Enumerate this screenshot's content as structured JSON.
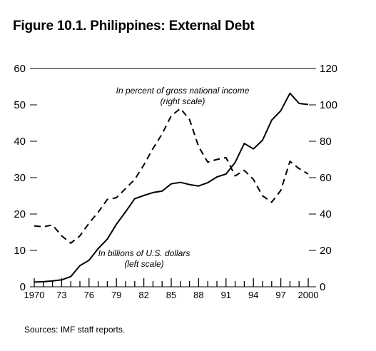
{
  "title": "Figure 10.1. Philippines: External Debt",
  "source": "Sources: IMF staff reports.",
  "chart_data": {
    "type": "line",
    "x_tick_labels": [
      "1970",
      "73",
      "76",
      "79",
      "82",
      "85",
      "88",
      "91",
      "94",
      "97",
      "2000"
    ],
    "x_tick_values": [
      1970,
      1973,
      1976,
      1979,
      1982,
      1985,
      1988,
      1991,
      1994,
      1997,
      2000
    ],
    "xlim": [
      1970,
      2000
    ],
    "y_left": {
      "ticks": [
        0,
        10,
        20,
        30,
        40,
        50,
        60
      ],
      "ylim": [
        0,
        60
      ]
    },
    "y_right": {
      "ticks": [
        0,
        20,
        40,
        60,
        80,
        100,
        120
      ],
      "ylim": [
        0,
        120
      ]
    },
    "grid": false,
    "series": [
      {
        "axis": "left",
        "style": "solid",
        "annotation": [
          "In billions of U.S. dollars",
          "(left scale)"
        ],
        "points": [
          [
            1970,
            1.3
          ],
          [
            1971,
            1.4
          ],
          [
            1972,
            1.6
          ],
          [
            1973,
            1.9
          ],
          [
            1974,
            2.8
          ],
          [
            1975,
            5.8
          ],
          [
            1976,
            7.3
          ],
          [
            1977,
            10.5
          ],
          [
            1978,
            13.1
          ],
          [
            1979,
            17.2
          ],
          [
            1980,
            20.6
          ],
          [
            1981,
            24.2
          ],
          [
            1982,
            25.1
          ],
          [
            1983,
            25.9
          ],
          [
            1984,
            26.3
          ],
          [
            1985,
            28.3
          ],
          [
            1986,
            28.7
          ],
          [
            1987,
            28.1
          ],
          [
            1988,
            27.7
          ],
          [
            1989,
            28.6
          ],
          [
            1990,
            30.2
          ],
          [
            1991,
            31.0
          ],
          [
            1992,
            34.2
          ],
          [
            1993,
            39.4
          ],
          [
            1994,
            37.9
          ],
          [
            1995,
            40.3
          ],
          [
            1996,
            45.8
          ],
          [
            1997,
            48.4
          ],
          [
            1998,
            53.2
          ],
          [
            1999,
            50.4
          ],
          [
            2000,
            50.1
          ]
        ]
      },
      {
        "axis": "right",
        "style": "dashed",
        "annotation": [
          "In percent of gross national income",
          "(right scale)"
        ],
        "points": [
          [
            1970,
            33.5
          ],
          [
            1971,
            33
          ],
          [
            1972,
            34
          ],
          [
            1973,
            28
          ],
          [
            1974,
            24
          ],
          [
            1975,
            28
          ],
          [
            1976,
            35
          ],
          [
            1977,
            41
          ],
          [
            1978,
            48
          ],
          [
            1979,
            49
          ],
          [
            1980,
            54
          ],
          [
            1981,
            59
          ],
          [
            1982,
            67
          ],
          [
            1983,
            76
          ],
          [
            1984,
            84
          ],
          [
            1985,
            94
          ],
          [
            1986,
            98
          ],
          [
            1987,
            92
          ],
          [
            1988,
            77
          ],
          [
            1989,
            68.5
          ],
          [
            1990,
            70
          ],
          [
            1991,
            71
          ],
          [
            1992,
            61
          ],
          [
            1993,
            64
          ],
          [
            1994,
            59
          ],
          [
            1995,
            50
          ],
          [
            1996,
            46.5
          ],
          [
            1997,
            53
          ],
          [
            1998,
            69
          ],
          [
            1999,
            65
          ],
          [
            2000,
            62
          ]
        ]
      }
    ]
  }
}
